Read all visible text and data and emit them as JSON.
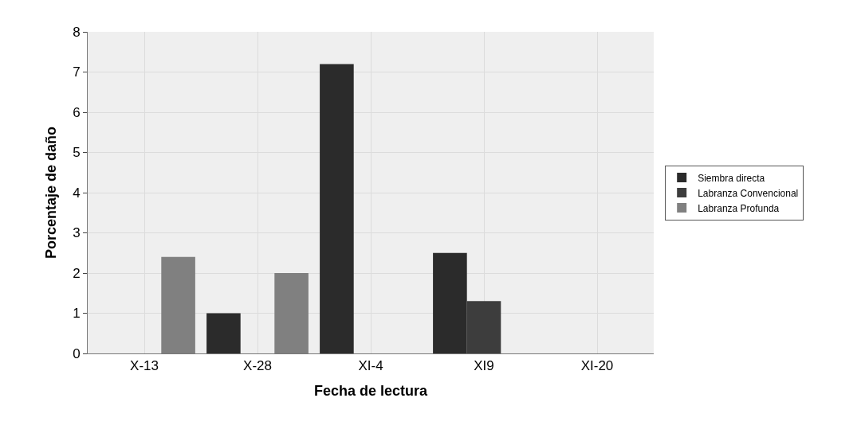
{
  "chart_data": {
    "type": "bar",
    "xlabel": "Fecha de lectura",
    "ylabel": "Porcentaje de daño",
    "categories": [
      "X-13",
      "X-28",
      "XI-4",
      "XI9",
      "XI-20"
    ],
    "series": [
      {
        "name": "Siembra directa",
        "color": "#2b2b2b",
        "values": [
          0,
          1.0,
          7.2,
          2.5,
          0
        ]
      },
      {
        "name": "Labranza Convencional",
        "color": "#3d3d3d",
        "values": [
          0,
          0,
          0,
          1.3,
          0
        ]
      },
      {
        "name": "Labranza Profunda",
        "color": "#808080",
        "values": [
          2.4,
          2.0,
          0,
          0,
          0
        ]
      }
    ],
    "ylim": [
      0,
      8
    ],
    "yticks": [
      0,
      1,
      2,
      3,
      4,
      5,
      6,
      7,
      8
    ],
    "grid": true,
    "legend": "right"
  }
}
